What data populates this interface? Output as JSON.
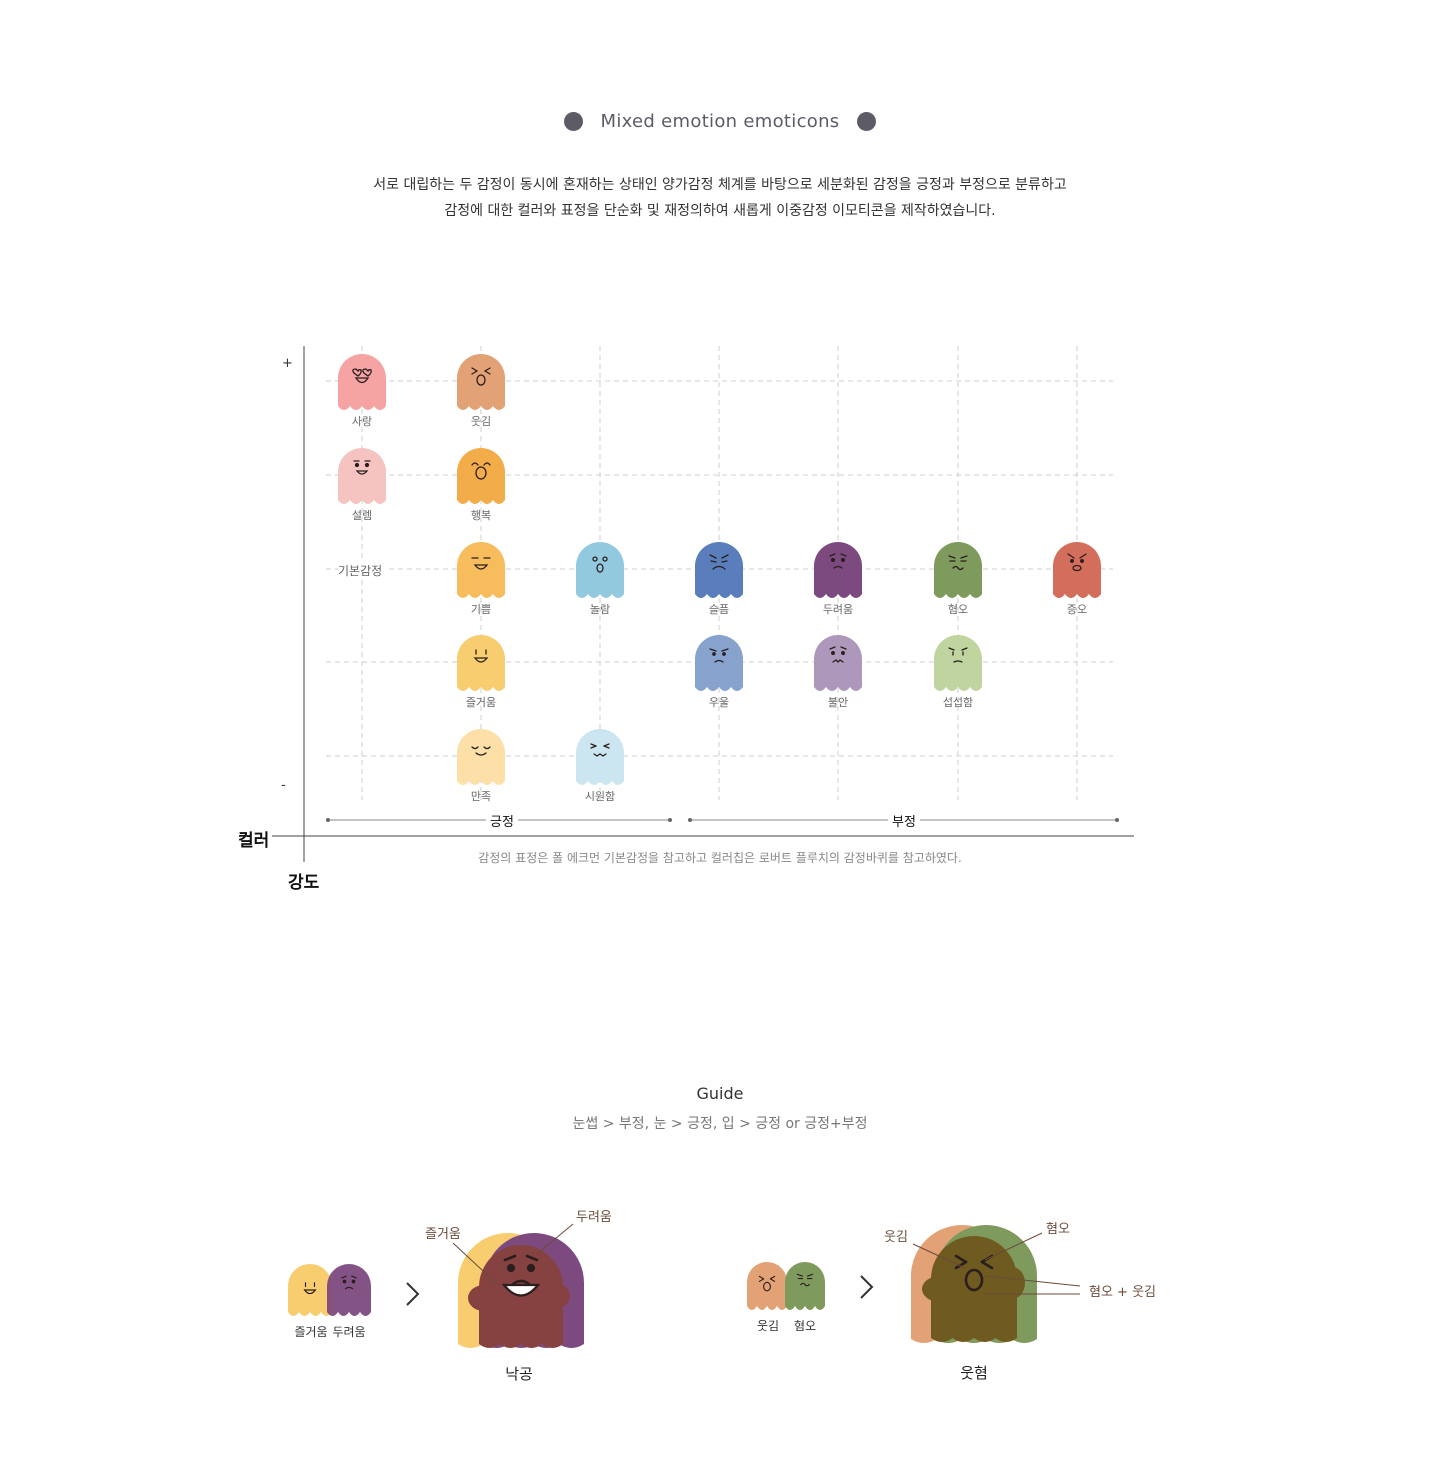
{
  "header": {
    "title": "Mixed emotion emoticons",
    "desc_line1": "서로 대립하는 두 감정이 동시에 혼재하는 상태인 양가감정 체계를 바탕으로 세분화된 감정을 긍정과 부정으로 분류하고",
    "desc_line2": "감정에 대한 컬러와 표정을 단순화 및 재정의하여 새롭게 이중감정 이모티콘을 제작하였습니다."
  },
  "diagram": {
    "y_plus": "+",
    "y_minus": "-",
    "basic_label": "기본감정",
    "positive_label": "긍정",
    "negative_label": "부정",
    "x_axis_label": "컬러",
    "y_axis_label": "강도",
    "caption": "감정의 표정은 폴 에크먼 기본감정을 참고하고 컬러칩은 로버트 플루치의 감정바퀴를 참고하였다.",
    "emotions": [
      {
        "label": "사랑",
        "col": 0,
        "row": 0,
        "color": "#f5a3a3",
        "face": "love"
      },
      {
        "label": "웃김",
        "col": 1,
        "row": 0,
        "color": "#e3a275",
        "face": "laugh"
      },
      {
        "label": "설렘",
        "col": 0,
        "row": 1,
        "color": "#f5c4c0",
        "face": "flutter"
      },
      {
        "label": "행복",
        "col": 1,
        "row": 1,
        "color": "#f2ad4a",
        "face": "happy"
      },
      {
        "label": "기쁨",
        "col": 1,
        "row": 2,
        "color": "#f7bd5c",
        "face": "joy"
      },
      {
        "label": "놀람",
        "col": 2,
        "row": 2,
        "color": "#93c9df",
        "face": "surprise"
      },
      {
        "label": "슬픔",
        "col": 3,
        "row": 2,
        "color": "#5a7dbb",
        "face": "sad"
      },
      {
        "label": "두려움",
        "col": 4,
        "row": 2,
        "color": "#7d4a7f",
        "face": "fear"
      },
      {
        "label": "혐오",
        "col": 5,
        "row": 2,
        "color": "#7e9a5c",
        "face": "disgust"
      },
      {
        "label": "증오",
        "col": 6,
        "row": 2,
        "color": "#d36d5c",
        "face": "hate"
      },
      {
        "label": "즐거움",
        "col": 1,
        "row": 3,
        "color": "#f7cd70",
        "face": "fun"
      },
      {
        "label": "우울",
        "col": 3,
        "row": 3,
        "color": "#86a2cd",
        "face": "gloom"
      },
      {
        "label": "불안",
        "col": 4,
        "row": 3,
        "color": "#ad98bb",
        "face": "anxious"
      },
      {
        "label": "섭섭함",
        "col": 5,
        "row": 3,
        "color": "#c0d49f",
        "face": "sorry"
      },
      {
        "label": "만족",
        "col": 1,
        "row": 4,
        "color": "#fddfa8",
        "face": "content"
      },
      {
        "label": "시원함",
        "col": 2,
        "row": 4,
        "color": "#cbe6f1",
        "face": "relief"
      }
    ]
  },
  "guide": {
    "title": "Guide",
    "rule": "눈썹 > 부정,  눈 > 긍정,  입 > 긍정 or 긍정+부정",
    "combo1": {
      "a_label": "즐거움",
      "b_label": "두려움",
      "a_color": "#f7cd70",
      "b_color": "#7d4a7f",
      "mix_color": "#864240",
      "ann_a": "즐거움",
      "ann_b": "두려움",
      "result": "낙공"
    },
    "combo2": {
      "a_label": "웃김",
      "b_label": "혐오",
      "a_color": "#e3a275",
      "b_color": "#7e9a5c",
      "mix_color": "#6f5a20",
      "ann_a": "웃김",
      "ann_b": "혐오",
      "ann_c": "혐오 + 웃김",
      "result": "웃혐"
    }
  }
}
